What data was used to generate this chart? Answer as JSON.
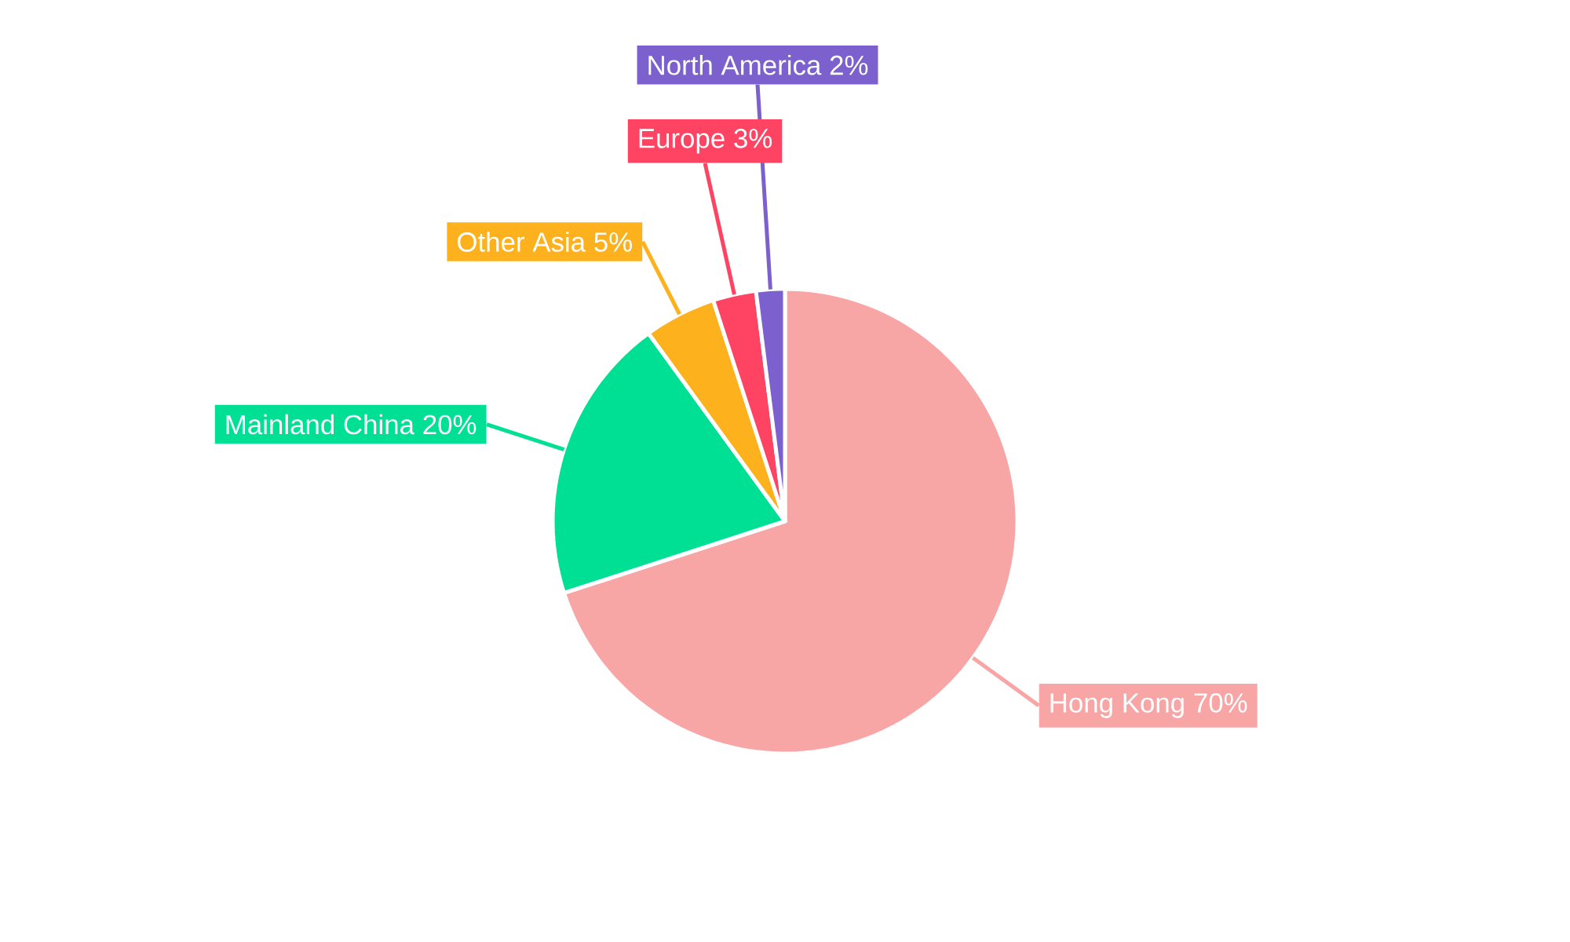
{
  "chart_data": {
    "type": "pie",
    "categories": [
      "Hong Kong",
      "Mainland China",
      "Other Asia",
      "Europe",
      "North America"
    ],
    "values": [
      70,
      20,
      5,
      3,
      2
    ],
    "value_labels": [
      "70%",
      "20%",
      "5%",
      "3%",
      "2%"
    ],
    "colors": [
      "#f8a5a6",
      "#00e095",
      "#fdb11c",
      "#ff4463",
      "#7b60ce"
    ]
  }
}
